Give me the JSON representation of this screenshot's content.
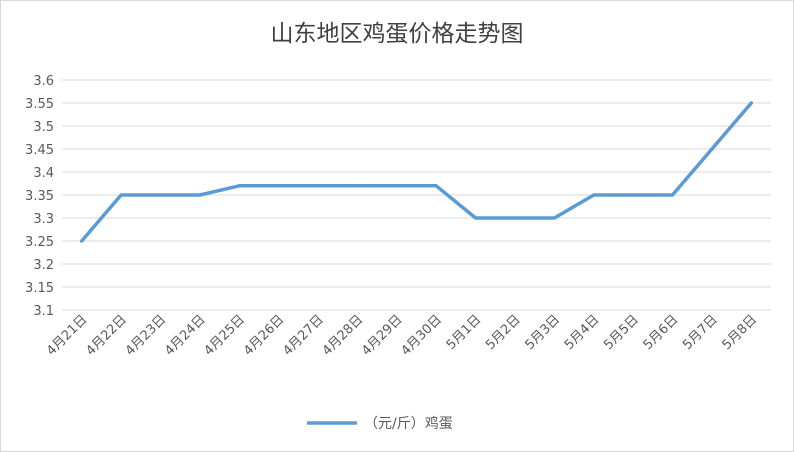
{
  "chart_data": {
    "type": "line",
    "title": "山东地区鸡蛋价格走势图",
    "xlabel": "",
    "ylabel": "",
    "categories": [
      "4月21日",
      "4月22日",
      "4月23日",
      "4月24日",
      "4月25日",
      "4月26日",
      "4月27日",
      "4月28日",
      "4月29日",
      "4月30日",
      "5月1日",
      "5月2日",
      "5月3日",
      "5月4日",
      "5月5日",
      "5月6日",
      "5月7日",
      "5月8日"
    ],
    "series": [
      {
        "name": "（元/斤）鸡蛋",
        "color": "#5b9bd5",
        "values": [
          3.25,
          3.35,
          3.35,
          3.35,
          3.37,
          3.37,
          3.37,
          3.37,
          3.37,
          3.37,
          3.3,
          3.3,
          3.3,
          3.35,
          3.35,
          3.35,
          3.45,
          3.55
        ]
      }
    ],
    "ylim": [
      3.1,
      3.6
    ],
    "yticks": [
      "3.1",
      "3.15",
      "3.2",
      "3.25",
      "3.3",
      "3.35",
      "3.4",
      "3.45",
      "3.5",
      "3.55",
      "3.6"
    ],
    "grid": true,
    "legend_position": "bottom"
  }
}
